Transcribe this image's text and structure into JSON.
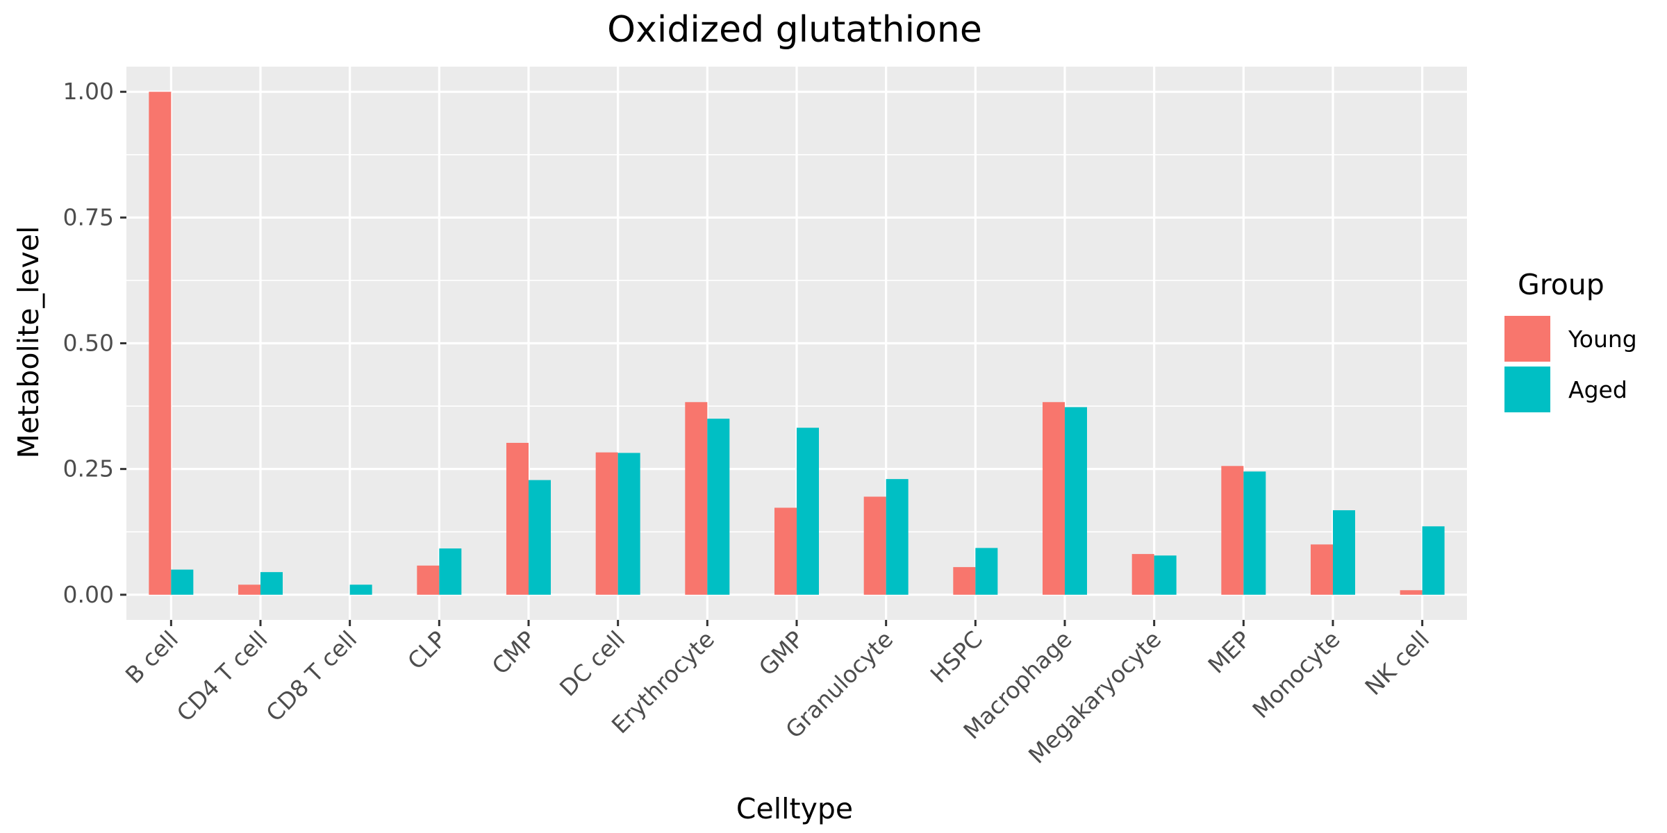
{
  "chart_data": {
    "type": "bar",
    "title": "Oxidized glutathione",
    "xlabel": "Celltype",
    "ylabel": "Metabolite_level",
    "ylim": [
      -0.05,
      1.05
    ],
    "yticks": [
      "0.00",
      "0.25",
      "0.50",
      "0.75",
      "1.00"
    ],
    "ytick_values": [
      0,
      0.25,
      0.5,
      0.75,
      1.0
    ],
    "grid": true,
    "legend": {
      "title": "Group",
      "position": "right"
    },
    "categories": [
      "B cell",
      "CD4 T cell",
      "CD8 T cell",
      "CLP",
      "CMP",
      "DC cell",
      "Erythrocyte",
      "GMP",
      "Granulocyte",
      "HSPC",
      "Macrophage",
      "Megakaryocyte",
      "MEP",
      "Monocyte",
      "NK cell"
    ],
    "series": [
      {
        "name": "Young",
        "color": "#F8766D",
        "values": [
          1.0,
          0.02,
          0.0,
          0.058,
          0.302,
          0.283,
          0.383,
          0.173,
          0.195,
          0.055,
          0.383,
          0.081,
          0.256,
          0.1,
          0.009
        ]
      },
      {
        "name": "Aged",
        "color": "#00BFC4",
        "values": [
          0.05,
          0.045,
          0.02,
          0.092,
          0.228,
          0.282,
          0.35,
          0.332,
          0.23,
          0.093,
          0.373,
          0.078,
          0.245,
          0.168,
          0.136
        ]
      }
    ]
  },
  "colors": {
    "panel_background": "#EBEBEB",
    "grid": "#FFFFFF",
    "tick": "#333333"
  }
}
